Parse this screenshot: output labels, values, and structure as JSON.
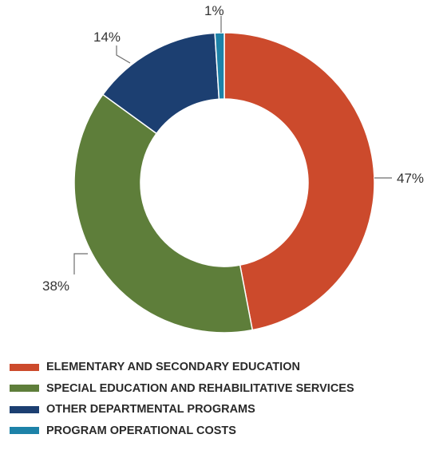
{
  "chart_data": {
    "type": "pie",
    "title": "",
    "categories": [
      "ELEMENTARY AND SECONDARY EDUCATION",
      "SPECIAL EDUCATION AND REHABILITATIVE SERVICES",
      "OTHER DEPARTMENTAL PROGRAMS",
      "PROGRAM OPERATIONAL COSTS"
    ],
    "values": [
      47,
      38,
      14,
      1
    ],
    "value_labels": [
      "47%",
      "38%",
      "14%",
      "1%"
    ],
    "colors": [
      "#cc4a2c",
      "#5e7e3a",
      "#1c3f71",
      "#1d82a8"
    ],
    "donut": true,
    "legend_position": "bottom-left"
  }
}
